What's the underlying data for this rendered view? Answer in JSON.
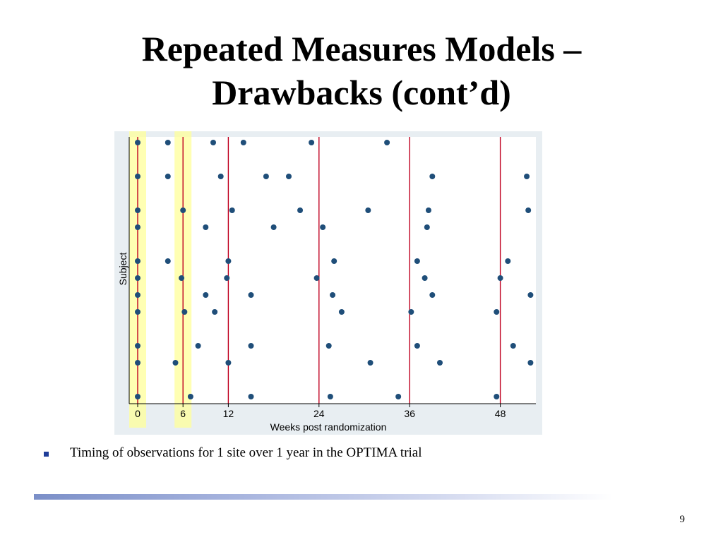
{
  "slide": {
    "title_line1": "Repeated Measures Models –",
    "title_line2": "Drawbacks (cont’d)",
    "bullet": "Timing of observations for 1 site over 1 year in the OPTIMA trial",
    "page_number": "9"
  },
  "colors": {
    "plot_background": "#e8eef2",
    "point": "#1f4e79",
    "highlight": "#ffff99",
    "reference_line": "#c00020",
    "bullet": "#1f3d99"
  },
  "chart_data": {
    "type": "scatter",
    "xlabel": "Weeks post randomization",
    "ylabel": "Subject",
    "xticks": [
      0,
      6,
      12,
      24,
      36,
      48
    ],
    "xlim": [
      -1,
      52.5
    ],
    "reference_lines_x": [
      12,
      24,
      36,
      48
    ],
    "highlight_bands_x": [
      0,
      6
    ],
    "subject_levels": 15,
    "subjects": [
      {
        "level": 15,
        "weeks": [
          0,
          4,
          10,
          14,
          23,
          33
        ]
      },
      {
        "level": 13,
        "weeks": [
          0,
          4,
          11,
          17,
          20,
          39,
          51.5
        ]
      },
      {
        "level": 11,
        "weeks": [
          0,
          6,
          12.5,
          21.5,
          30.5,
          38.5,
          51.7
        ]
      },
      {
        "level": 10,
        "weeks": [
          0,
          9,
          18,
          24.5,
          38.3
        ]
      },
      {
        "level": 8,
        "weeks": [
          0,
          4,
          12,
          26,
          37,
          49
        ]
      },
      {
        "level": 7,
        "weeks": [
          0,
          5.8,
          11.8,
          23.7,
          38,
          48
        ]
      },
      {
        "level": 6,
        "weeks": [
          0,
          9,
          15,
          25.8,
          39,
          52
        ]
      },
      {
        "level": 5,
        "weeks": [
          0,
          6.2,
          10.2,
          27,
          36.2,
          47.5
        ]
      },
      {
        "level": 3,
        "weeks": [
          0,
          8,
          15,
          25.3,
          37,
          49.7
        ]
      },
      {
        "level": 2,
        "weeks": [
          0,
          5,
          12,
          30.8,
          40,
          52
        ]
      },
      {
        "level": 0,
        "weeks": [
          0,
          7,
          15,
          25.5,
          34.5,
          47.5
        ]
      }
    ]
  }
}
